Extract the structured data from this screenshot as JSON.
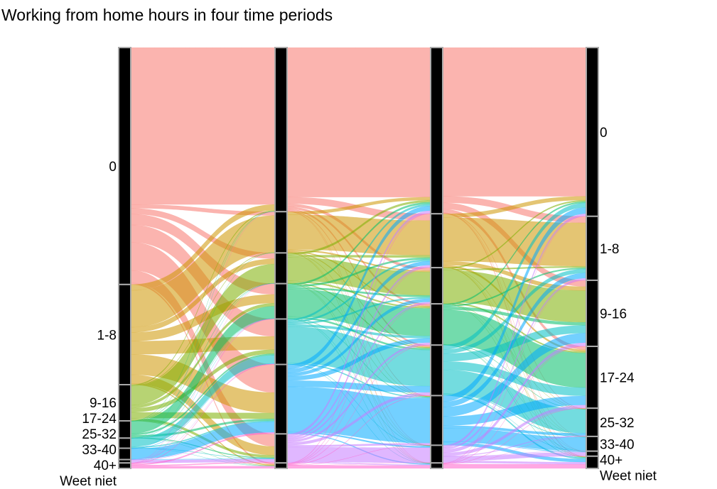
{
  "chart_data": {
    "type": "alluvial",
    "title": "Working from home hours in four time periods",
    "categories": [
      "0",
      "1-8",
      "9-16",
      "17-24",
      "25-32",
      "33-40",
      "40+",
      "Weet niet"
    ],
    "category_colors": [
      "#F8766D",
      "#CD9600",
      "#7CAE00",
      "#00BE67",
      "#00BFC4",
      "#00A9FF",
      "#C77CFF",
      "#FF61CC"
    ],
    "axes": [
      {
        "show_labels": true,
        "label_side": "left",
        "proportions": [
          56.3,
          23.8,
          8.6,
          4.1,
          2.4,
          2.7,
          0.8,
          1.3
        ]
      },
      {
        "show_labels": false,
        "proportions": [
          39.0,
          9.8,
          7.3,
          8.4,
          10.8,
          16.5,
          6.9,
          1.3
        ]
      },
      {
        "show_labels": false,
        "proportions": [
          39.5,
          12.8,
          8.6,
          9.8,
          12.0,
          11.8,
          4.2,
          1.3
        ]
      },
      {
        "show_labels": true,
        "label_side": "right",
        "proportions": [
          40.1,
          15.2,
          15.7,
          14.7,
          6.7,
          3.5,
          1.2,
          2.9
        ]
      }
    ],
    "stratum_fill": "#000000",
    "stratum_border": "#AAAAAA",
    "flow_opacity": 0.55
  }
}
